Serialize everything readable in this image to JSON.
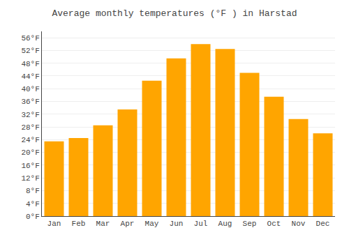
{
  "chart_data": {
    "type": "bar",
    "title": "Average monthly temperatures (°F ) in Harstad",
    "categories": [
      "Jan",
      "Feb",
      "Mar",
      "Apr",
      "May",
      "Jun",
      "Jul",
      "Aug",
      "Sep",
      "Oct",
      "Nov",
      "Dec"
    ],
    "values": [
      23.5,
      24.5,
      28.5,
      33.5,
      42.5,
      49.5,
      54.0,
      52.5,
      45.0,
      37.5,
      30.5,
      26.0
    ],
    "color": "#FFA500",
    "ylim": [
      0,
      58
    ],
    "yticks": [
      {
        "value": 0,
        "label": "0°F"
      },
      {
        "value": 4,
        "label": "4°F"
      },
      {
        "value": 8,
        "label": "8°F"
      },
      {
        "value": 12,
        "label": "12°F"
      },
      {
        "value": 16,
        "label": "16°F"
      },
      {
        "value": 20,
        "label": "20°F"
      },
      {
        "value": 24,
        "label": "24°F"
      },
      {
        "value": 28,
        "label": "28°F"
      },
      {
        "value": 32,
        "label": "32°F"
      },
      {
        "value": 36,
        "label": "36°F"
      },
      {
        "value": 40,
        "label": "40°F"
      },
      {
        "value": 44,
        "label": "44°F"
      },
      {
        "value": 48,
        "label": "48°F"
      },
      {
        "value": 52,
        "label": "52°F"
      },
      {
        "value": 56,
        "label": "56°F"
      }
    ],
    "grid": true
  }
}
